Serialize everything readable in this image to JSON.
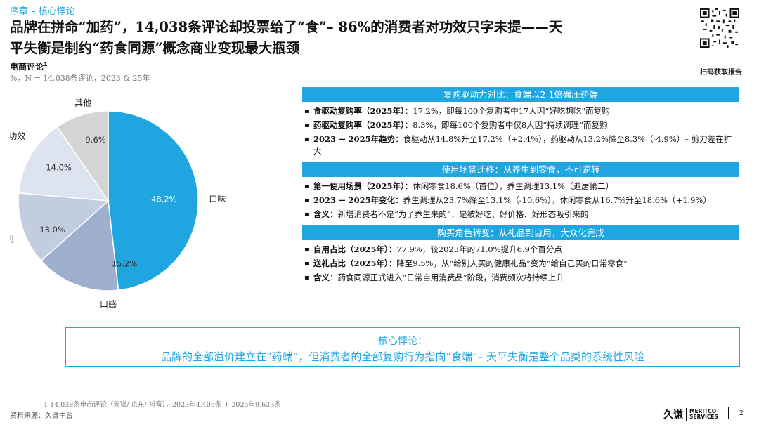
{
  "header": {
    "breadcrumb": "序章 – 核心悖论",
    "title_line1": "品牌在拼命“加药”，14,038条评论却投票给了“食”– 86%的消费者对功效只字未提——天",
    "title_line2": "平失衡是制约“药食同源”概念商业变现最大瓶颈",
    "qr_label": "扫码获取报告"
  },
  "left": {
    "section_label": "电商评论",
    "footnote_marker": "1",
    "section_sub": "%，N = 14,038条评论，2023 & 25年"
  },
  "chart_data": {
    "type": "pie",
    "slices": [
      {
        "label": "口味",
        "value": 48.2,
        "color": "#1fa6e0"
      },
      {
        "label": "口感",
        "value": 15.2,
        "color": "#9fb0cf"
      },
      {
        "label": "便利",
        "value": 13.0,
        "color": "#c2cde0"
      },
      {
        "label": "功效",
        "value": 14.0,
        "color": "#dde3ef"
      },
      {
        "label": "其他",
        "value": 9.6,
        "color": "#d4d4d4"
      }
    ],
    "value_labels": [
      "48.2%",
      "15.2%",
      "13.0%",
      "14.0%",
      "9.6%"
    ]
  },
  "sections": [
    {
      "title": "复购驱动力对比：食端以2.1倍碾压药端",
      "bullets": [
        {
          "key": "食驱动复购率（2025年）",
          "text": "：17.2%，即每100个复购者中17人因“好吃想吃”而复购"
        },
        {
          "key": "药驱动复购率（2025年）",
          "text": "：8.3%，即每100个复购者中仅8人因“持续调理”而复购"
        },
        {
          "key": "2023 → 2025年趋势",
          "text": "：食驱动从14.8%升至17.2%（+2.4%），药驱动从13.2%降至8.3%（-4.9%）– 剪刀差在扩大"
        }
      ]
    },
    {
      "title": "使用场景迁移：从养生到零食，不可逆转",
      "bullets": [
        {
          "key": "第一使用场景（2025年）",
          "text": "：休闲零食18.6%（首位），养生调理13.1%（退居第二）"
        },
        {
          "key": "2023 → 2025年变化",
          "text": "：养生调理从23.7%降至13.1%（-10.6%），休闲零食从16.7%升至18.6%（+1.9%）"
        },
        {
          "key": "含义",
          "text": "：新增消费者不是“为了养生来的”，是被好吃、好价格、好形态吸引来的"
        }
      ]
    },
    {
      "title": "购买角色转变：从礼品到自用，大众化完成",
      "bullets": [
        {
          "key": "自用占比（2025年）",
          "text": "：77.9%，较2023年的71.0%提升6.9个百分点"
        },
        {
          "key": "送礼占比（2025年）",
          "text": "：降至9.5%，从“给别人买的健康礼品”变为“给自己买的日常零食”"
        },
        {
          "key": "含义",
          "text": "：药食同源正式进入“日常自用消费品”阶段，消费频次将持续上升"
        }
      ]
    }
  ],
  "core": {
    "heading": "核心悖论：",
    "text": "品牌的全部溢价建立在“药端”，但消费者的全部复购行为指向“食端”– 天平失衡是整个品类的系统性风险"
  },
  "footer": {
    "note": "1 14,038条电商评论（天猫/ 京东/ 抖音），2023年4,405条 + 2025年9,633条",
    "source": "资料来源：久谦中台",
    "logo_cn": "久谦",
    "logo_en1": "MERITCO",
    "logo_en2": "SERVICES",
    "page": "2"
  }
}
